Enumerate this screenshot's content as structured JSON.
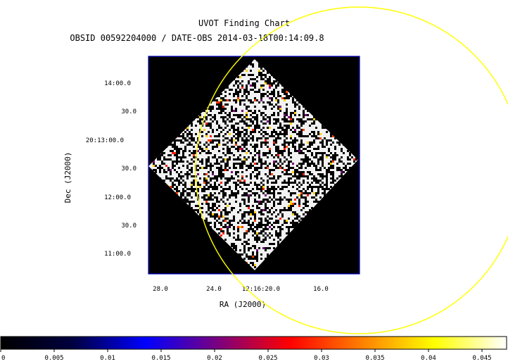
{
  "header": {
    "title": "UVOT Finding Chart",
    "subtitle": "OBSID 00592204000 / DATE-OBS 2014-03-18T00:14:09.8"
  },
  "axes": {
    "ylabel": "Dec (J2000)",
    "xlabel": "RA (J2000)",
    "dec_ticks": [
      "14:00.0",
      "30.0",
      "20:13:00.0",
      "30.0",
      "12:00.0",
      "30.0",
      "11:00.0"
    ],
    "ra_ticks": [
      "28.0",
      "24.0",
      "12:16:20.0",
      "16.0"
    ]
  },
  "colorbar": {
    "ticks": [
      "0",
      "0.005",
      "0.01",
      "0.015",
      "0.02",
      "0.025",
      "0.03",
      "0.035",
      "0.04",
      "0.045"
    ],
    "stops": [
      "#000000",
      "#000040",
      "#0000ff",
      "#7a0080",
      "#ff0000",
      "#ff8000",
      "#ffff00",
      "#ffffff"
    ]
  },
  "colors": {
    "frame": "#0000cc",
    "circle": "#ffff00",
    "background": "#000000"
  }
}
